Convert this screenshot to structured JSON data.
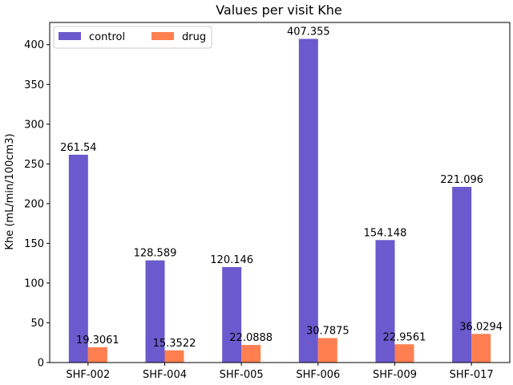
{
  "chart_data": {
    "type": "bar",
    "title": "Values per visit Khe",
    "xlabel": "",
    "ylabel": "Khe (mL/min/100cm3)",
    "ylim": [
      0,
      428
    ],
    "yticks": [
      0,
      50,
      100,
      150,
      200,
      250,
      300,
      350,
      400
    ],
    "categories": [
      "SHF-002",
      "SHF-004",
      "SHF-005",
      "SHF-006",
      "SHF-009",
      "SHF-017"
    ],
    "series": [
      {
        "name": "control",
        "color": "#6a5acd",
        "values": [
          261.54,
          128.589,
          120.146,
          407.355,
          154.148,
          221.096
        ],
        "labels": [
          "261.54",
          "128.589",
          "120.146",
          "407.355",
          "154.148",
          "221.096"
        ]
      },
      {
        "name": "drug",
        "color": "#ff7f50",
        "values": [
          19.3061,
          15.3522,
          22.0888,
          30.7875,
          22.9561,
          36.0294
        ],
        "labels": [
          "19.3061",
          "15.3522",
          "22.0888",
          "30.7875",
          "22.9561",
          "36.0294"
        ]
      }
    ],
    "grid": false,
    "legend_position": "top-left"
  }
}
